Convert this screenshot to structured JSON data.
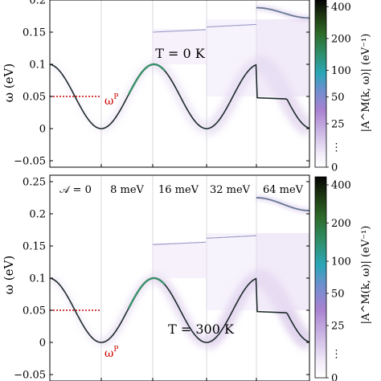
{
  "chart_data": [
    {
      "type": "heatmap",
      "panel": "top",
      "annotation": "T = 0 K",
      "ylabel": "ω (eV)",
      "ylim": [
        -0.06,
        0.2
      ],
      "yticks": [
        0.2,
        0.15,
        0.1,
        0.05,
        0,
        -0.05
      ],
      "ytick_labels": [
        "0.2",
        "0.15",
        "0.1",
        "0.05",
        "0",
        "−0.05"
      ],
      "segments": [
        "𝒜 = 0",
        "8 meV",
        "16 meV",
        "32 meV",
        "64 meV"
      ],
      "segment_labels_visible": false,
      "dispersion": {
        "center": 0.05,
        "amplitude": 0.05,
        "unit": "eV"
      },
      "phonon_energy_marker": {
        "label": "ω^P",
        "value": 0.05,
        "color": "#cc0000"
      },
      "upper_branch": [
        null,
        null,
        0.15,
        0.158,
        0.19
      ],
      "colorbar": {
        "label": "|A^M(k, ω)| (eV⁻¹)",
        "ticks": [
          "400",
          "200",
          "100",
          "50",
          "25",
          "⋮",
          "0"
        ]
      }
    },
    {
      "type": "heatmap",
      "panel": "bottom",
      "annotation": "T = 300 K",
      "ylabel": "ω (eV)",
      "ylim": [
        -0.06,
        0.26
      ],
      "yticks": [
        0.25,
        0.2,
        0.15,
        0.1,
        0.05,
        0,
        -0.05
      ],
      "ytick_labels": [
        "0.25",
        "0.2",
        "0.15",
        "0.1",
        "0.05",
        "0",
        "−0.05"
      ],
      "segments": [
        "𝒜 = 0",
        "8 meV",
        "16 meV",
        "32 meV",
        "64 meV"
      ],
      "segment_labels_visible": true,
      "dispersion": {
        "center": 0.05,
        "amplitude": 0.05,
        "unit": "eV"
      },
      "phonon_energy_marker": {
        "label": "ω^P",
        "value": 0.05,
        "color": "#cc0000"
      },
      "upper_branch": [
        null,
        null,
        0.152,
        0.162,
        0.225
      ],
      "colorbar": {
        "label": "|A^M(k, ω)| (eV⁻¹)",
        "ticks": [
          "400",
          "200",
          "100",
          "50",
          "25",
          "⋮",
          "0"
        ]
      }
    }
  ]
}
